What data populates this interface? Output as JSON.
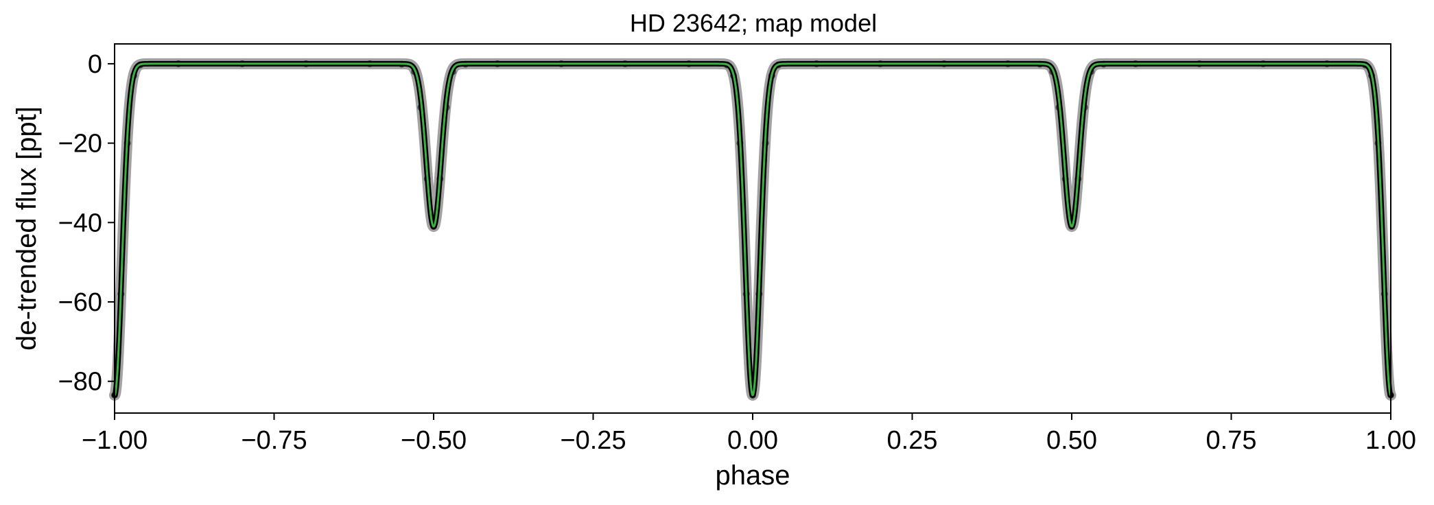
{
  "chart_data": {
    "type": "scatter",
    "title": "HD 23642; map model",
    "xlabel": "phase",
    "ylabel": "de-trended flux [ppt]",
    "xlim": [
      -1.0,
      1.0
    ],
    "ylim": [
      -88,
      5
    ],
    "x_ticks": [
      {
        "value": -1.0,
        "label": "−1.00"
      },
      {
        "value": -0.75,
        "label": "−0.75"
      },
      {
        "value": -0.5,
        "label": "−0.50"
      },
      {
        "value": -0.25,
        "label": "−0.25"
      },
      {
        "value": 0.0,
        "label": "0.00"
      },
      {
        "value": 0.25,
        "label": "0.25"
      },
      {
        "value": 0.5,
        "label": "0.50"
      },
      {
        "value": 0.75,
        "label": "0.75"
      },
      {
        "value": 1.0,
        "label": "1.00"
      }
    ],
    "y_ticks": [
      {
        "value": 0,
        "label": "0"
      },
      {
        "value": -20,
        "label": "−20"
      },
      {
        "value": -40,
        "label": "−40"
      },
      {
        "value": -60,
        "label": "−60"
      },
      {
        "value": -80,
        "label": "−80"
      }
    ],
    "grid": false,
    "series": [
      {
        "kind": "data-points",
        "color": "#000000",
        "x": [
          -1.0,
          -0.99,
          -0.98,
          -0.97,
          -0.96,
          -0.9,
          -0.8,
          -0.7,
          -0.6,
          -0.55,
          -0.53,
          -0.52,
          -0.51,
          -0.5,
          -0.49,
          -0.48,
          -0.47,
          -0.45,
          -0.4,
          -0.3,
          -0.2,
          -0.1,
          -0.04,
          -0.03,
          -0.02,
          -0.01,
          0.0,
          0.01,
          0.02,
          0.03,
          0.04,
          0.1,
          0.2,
          0.3,
          0.4,
          0.45,
          0.47,
          0.48,
          0.49,
          0.5,
          0.51,
          0.52,
          0.53,
          0.55,
          0.6,
          0.7,
          0.8,
          0.9,
          0.96,
          0.97,
          0.98,
          0.99,
          1.0
        ],
        "y": [
          -83.5,
          -58,
          -20,
          -3,
          -0.3,
          0,
          0,
          0,
          0,
          -0.1,
          -2,
          -11,
          -29,
          -41,
          -29,
          -11,
          -2,
          -0.1,
          0,
          0,
          0,
          0,
          -0.3,
          -3,
          -20,
          -58,
          -83.5,
          -58,
          -20,
          -3,
          -0.3,
          0,
          0,
          0,
          0,
          -0.1,
          -2,
          -11,
          -29,
          -41,
          -29,
          -11,
          -2,
          -0.1,
          0,
          0,
          0,
          0,
          -0.3,
          -3,
          -20,
          -58,
          -83.5
        ]
      },
      {
        "kind": "model",
        "color": "#3cb043",
        "eclipses": [
          {
            "center": -1.0,
            "depth": 83.5,
            "width": 0.0115
          },
          {
            "center": -0.5,
            "depth": 41.0,
            "width": 0.0115
          },
          {
            "center": 0.0,
            "depth": 83.5,
            "width": 0.0115
          },
          {
            "center": 0.5,
            "depth": 41.0,
            "width": 0.0115
          },
          {
            "center": 1.0,
            "depth": 83.5,
            "width": 0.0115
          }
        ]
      }
    ]
  }
}
